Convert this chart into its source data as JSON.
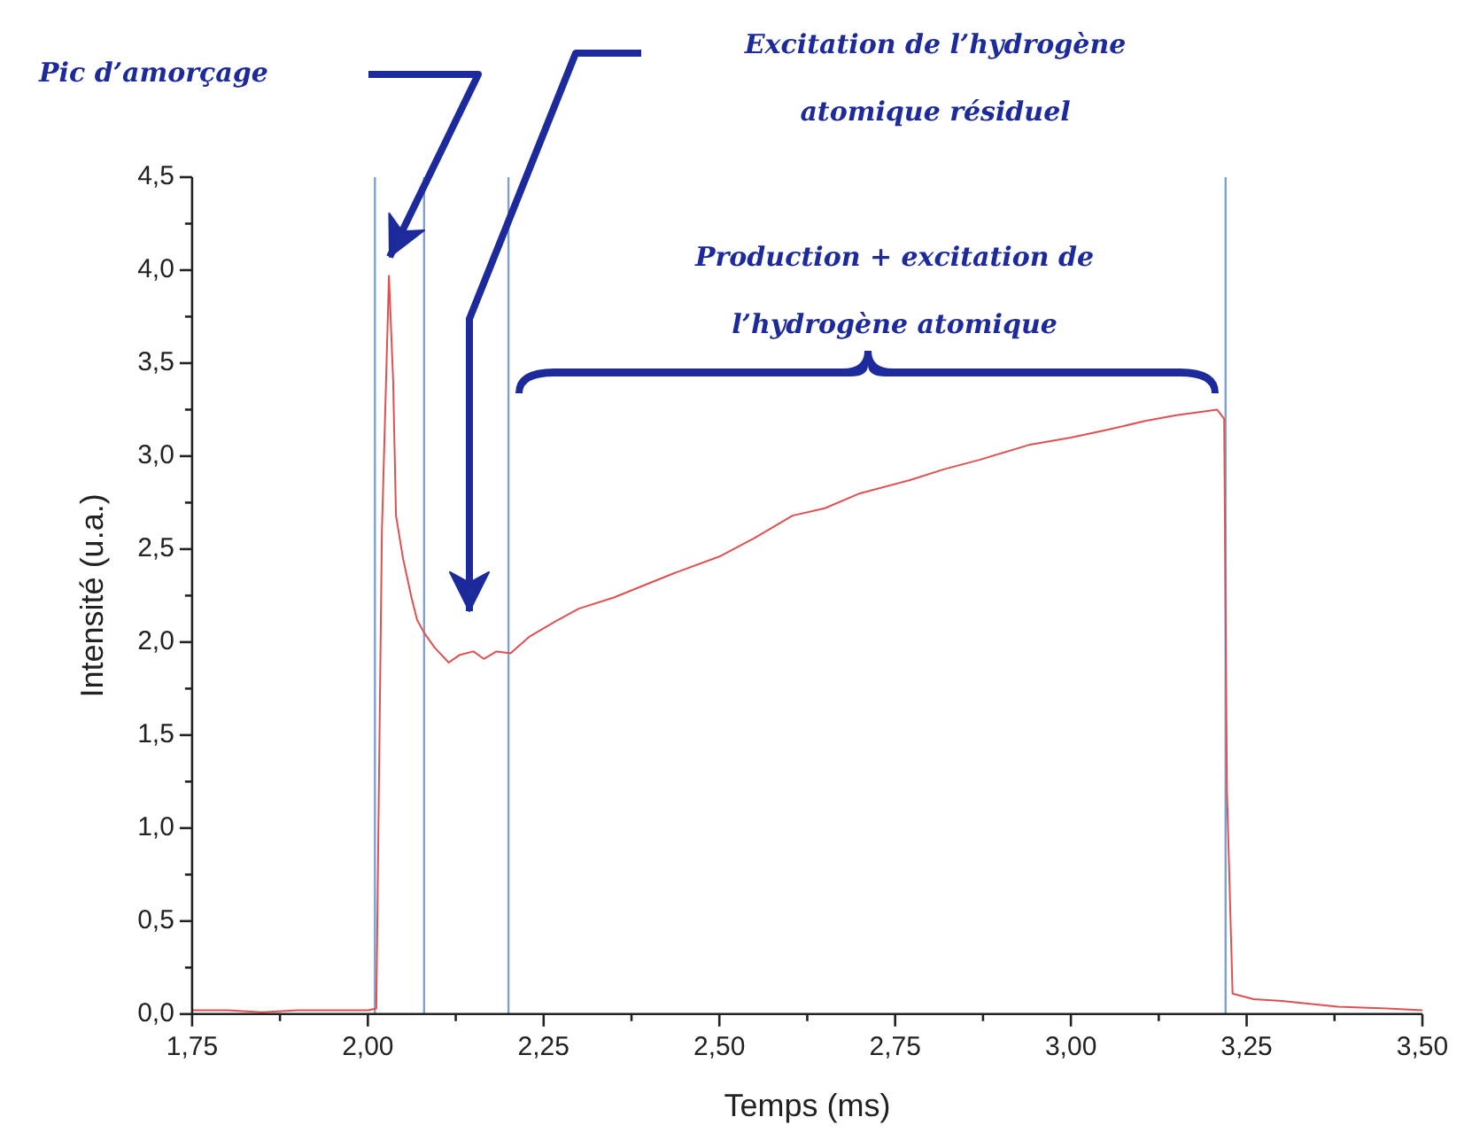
{
  "chart_data": {
    "type": "line",
    "xlabel": "Temps (ms)",
    "ylabel": "Intensité (u.a.)",
    "x": [
      1.75,
      1.8,
      1.85,
      1.9,
      1.95,
      2.0,
      2.012,
      2.02,
      2.03,
      2.036,
      2.04,
      2.05,
      2.062,
      2.07,
      2.08,
      2.095,
      2.115,
      2.13,
      2.15,
      2.165,
      2.183,
      2.203,
      2.23,
      2.266,
      2.3,
      2.35,
      2.435,
      2.5,
      2.55,
      2.604,
      2.65,
      2.7,
      2.77,
      2.82,
      2.87,
      2.94,
      3.0,
      3.05,
      3.107,
      3.15,
      3.208,
      3.218,
      3.222,
      3.23,
      3.26,
      3.3,
      3.38,
      3.45,
      3.5
    ],
    "series": [
      {
        "color": "#e05050",
        "values": [
          0.02,
          0.02,
          0.01,
          0.02,
          0.02,
          0.02,
          0.03,
          2.6,
          3.97,
          3.4,
          2.68,
          2.45,
          2.24,
          2.12,
          2.05,
          1.97,
          1.89,
          1.93,
          1.95,
          1.91,
          1.95,
          1.94,
          2.03,
          2.11,
          2.18,
          2.24,
          2.37,
          2.46,
          2.56,
          2.68,
          2.72,
          2.8,
          2.87,
          2.93,
          2.98,
          3.06,
          3.1,
          3.14,
          3.19,
          3.22,
          3.25,
          3.2,
          1.2,
          0.11,
          0.08,
          0.07,
          0.04,
          0.03,
          0.02
        ]
      }
    ],
    "xlim": [
      1.75,
      3.5
    ],
    "xticks": [
      {
        "value": 1.75,
        "label": "1,75"
      },
      {
        "value": 1.875,
        "label": null
      },
      {
        "value": 2.0,
        "label": "2,00"
      },
      {
        "value": 2.125,
        "label": null
      },
      {
        "value": 2.25,
        "label": "2,25"
      },
      {
        "value": 2.375,
        "label": null
      },
      {
        "value": 2.5,
        "label": "2,50"
      },
      {
        "value": 2.625,
        "label": null
      },
      {
        "value": 2.75,
        "label": "2,75"
      },
      {
        "value": 2.875,
        "label": null
      },
      {
        "value": 3.0,
        "label": "3,00"
      },
      {
        "value": 3.125,
        "label": null
      },
      {
        "value": 3.25,
        "label": "3,25"
      },
      {
        "value": 3.375,
        "label": null
      },
      {
        "value": 3.5,
        "label": "3,50"
      }
    ],
    "ylim": [
      0,
      4.5
    ],
    "yticks": [
      {
        "value": 0,
        "label": "0,0"
      },
      {
        "value": 0.25,
        "label": null
      },
      {
        "value": 0.5,
        "label": "0,5"
      },
      {
        "value": 0.75,
        "label": null
      },
      {
        "value": 1.0,
        "label": "1,0"
      },
      {
        "value": 1.25,
        "label": null
      },
      {
        "value": 1.5,
        "label": "1,5"
      },
      {
        "value": 1.75,
        "label": null
      },
      {
        "value": 2.0,
        "label": "2,0"
      },
      {
        "value": 2.25,
        "label": null
      },
      {
        "value": 2.5,
        "label": "2,5"
      },
      {
        "value": 2.75,
        "label": null
      },
      {
        "value": 3.0,
        "label": "3,0"
      },
      {
        "value": 3.25,
        "label": null
      },
      {
        "value": 3.5,
        "label": "3,5"
      },
      {
        "value": 3.75,
        "label": null
      },
      {
        "value": 4.0,
        "label": "4,0"
      },
      {
        "value": 4.25,
        "label": null
      },
      {
        "value": 4.5,
        "label": "4,5"
      }
    ],
    "ref_lines": [
      {
        "axis": "x",
        "value": 2.01,
        "color": "#7f9fcf"
      },
      {
        "axis": "x",
        "value": 2.08,
        "color": "#7f9fcf"
      },
      {
        "axis": "x",
        "value": 2.2,
        "color": "#7f9fcf"
      },
      {
        "axis": "x",
        "value": 3.22,
        "color": "#7f9fcf"
      }
    ],
    "annotations": [
      "Pic d’amorçage",
      "Excitation de l’hydrogène atomique résiduel",
      "Production + excitation de l’hydrogène atomique"
    ],
    "grid": false,
    "legend": false,
    "marker": "none",
    "line_style": "solid"
  }
}
